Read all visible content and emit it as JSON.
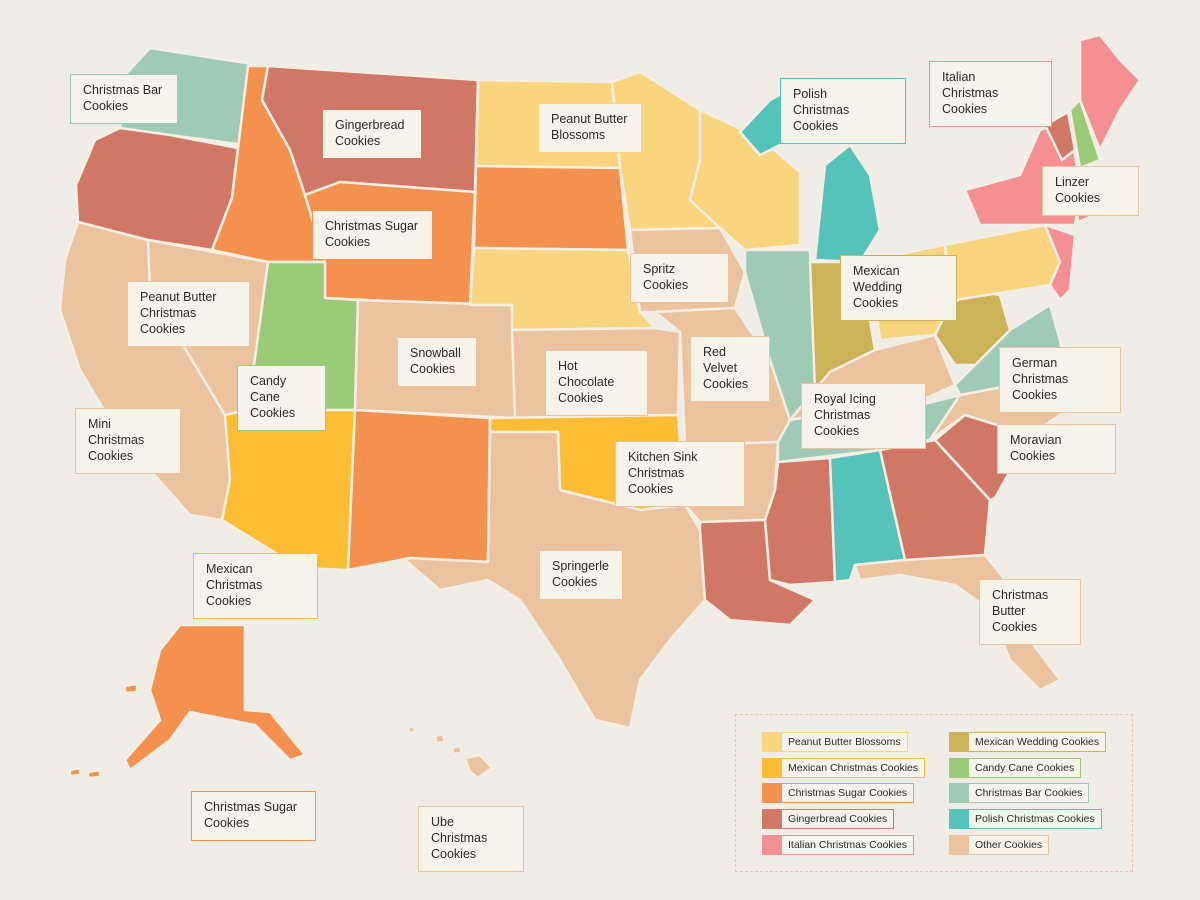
{
  "colors": {
    "peanut_butter_blossoms": "#f8d57e",
    "mexican_christmas": "#fbbd34",
    "christmas_sugar": "#f5914e",
    "gingerbread": "#d07865",
    "italian_christmas": "#f48f92",
    "mexican_wedding": "#cdb358",
    "candy_cane": "#9bcb79",
    "christmas_bar": "#9fcab5",
    "polish_christmas": "#56c3bb",
    "other": "#ebc39f"
  },
  "callouts": [
    {
      "id": "wa",
      "text": "Christmas Bar\nCookies",
      "category": "christmas_bar"
    },
    {
      "id": "mt",
      "text": "Gingerbread\nCookies",
      "category": "gingerbread"
    },
    {
      "id": "nd",
      "text": "Peanut Butter\nBlossoms",
      "category": "peanut_butter_blossoms"
    },
    {
      "id": "mi",
      "text": "Polish\nChristmas Cookies",
      "category": "polish_christmas"
    },
    {
      "id": "ma",
      "text": "Italian\nChristmas Cookies",
      "category": "italian_christmas"
    },
    {
      "id": "nh",
      "text": "Linzer Cookies",
      "category": "other"
    },
    {
      "id": "wy",
      "text": "Christmas Sugar\nCookies",
      "category": "christmas_sugar"
    },
    {
      "id": "ia",
      "text": "Spritz Cookies",
      "category": "other"
    },
    {
      "id": "in",
      "text": "Mexican Wedding\nCookies",
      "category": "mexican_wedding"
    },
    {
      "id": "nv",
      "text": "Peanut Butter\nChristmas Cookies",
      "category": "other"
    },
    {
      "id": "co",
      "text": "Snowball\nCookies",
      "category": "other"
    },
    {
      "id": "ks",
      "text": "Hot Chocolate\nCookies",
      "category": "other"
    },
    {
      "id": "mo",
      "text": "Red Velvet\nCookies",
      "category": "other"
    },
    {
      "id": "va",
      "text": "German\nChristmas Cookies",
      "category": "other"
    },
    {
      "id": "ut",
      "text": "Candy Cane\nCookies",
      "category": "candy_cane"
    },
    {
      "id": "ky",
      "text": "Royal Icing\nChristmas Cookies",
      "category": "other"
    },
    {
      "id": "ca",
      "text": "Mini Christmas\nCookies",
      "category": "other"
    },
    {
      "id": "nc",
      "text": "Moravian Cookies",
      "category": "other"
    },
    {
      "id": "ok",
      "text": "Kitchen Sink\nChristmas Cookies",
      "category": "other"
    },
    {
      "id": "az",
      "text": "Mexican\nChristmas Cookies",
      "category": "mexican_christmas"
    },
    {
      "id": "tx",
      "text": "Springerle\nCookies",
      "category": "other"
    },
    {
      "id": "fl",
      "text": "Christmas\nButter Cookies",
      "category": "other"
    },
    {
      "id": "ak",
      "text": "Christmas Sugar\nCookies",
      "category": "christmas_sugar"
    },
    {
      "id": "hi",
      "text": "Ube Christmas\nCookies",
      "category": "other"
    }
  ],
  "legend": [
    {
      "label": "Peanut Butter Blossoms",
      "category": "peanut_butter_blossoms"
    },
    {
      "label": "Mexican Christmas Cookies",
      "category": "mexican_christmas"
    },
    {
      "label": "Christmas Sugar Cookies",
      "category": "christmas_sugar"
    },
    {
      "label": "Gingerbread Cookies",
      "category": "gingerbread"
    },
    {
      "label": "Italian Christmas Cookies",
      "category": "italian_christmas"
    },
    {
      "label": "Mexican Wedding Cookies",
      "category": "mexican_wedding"
    },
    {
      "label": "Candy Cane Cookies",
      "category": "candy_cane"
    },
    {
      "label": "Christmas Bar Cookies",
      "category": "christmas_bar"
    },
    {
      "label": "Polish Christmas Cookies",
      "category": "polish_christmas"
    },
    {
      "label": "Other Cookies",
      "category": "other"
    }
  ]
}
